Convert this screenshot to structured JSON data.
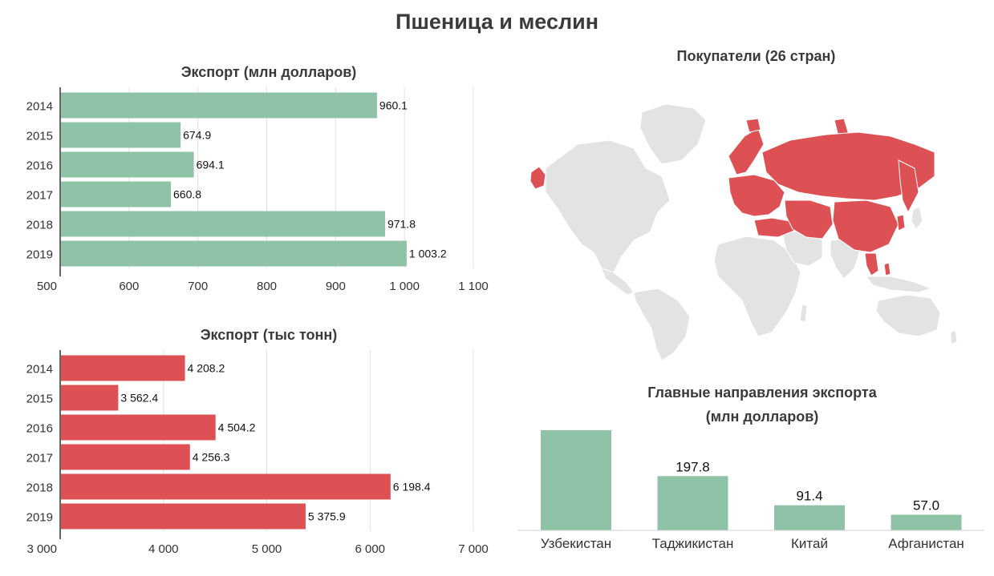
{
  "page_title": "Пшеница и меслин",
  "colors": {
    "green": "#8fc3a7",
    "red": "#dd5054",
    "map_base": "#e3e3e3",
    "map_buyer": "#dd5054"
  },
  "chart_data": [
    {
      "id": "export_value",
      "type": "bar",
      "orientation": "horizontal",
      "title": "Экспорт (млн долларов)",
      "categories": [
        "2014",
        "2015",
        "2016",
        "2017",
        "2018",
        "2019"
      ],
      "values": [
        960.1,
        674.9,
        694.1,
        660.8,
        971.8,
        1003.2
      ],
      "value_labels": [
        "960.1",
        "674.9",
        "694.1",
        "660.8",
        "971.8",
        "1 003.2"
      ],
      "xlim": [
        500,
        1100
      ],
      "ticks": [
        500,
        600,
        700,
        800,
        900,
        1000,
        1100
      ],
      "tick_labels": [
        "500",
        "600",
        "700",
        "800",
        "900",
        "1 000",
        "1 100"
      ],
      "color": "#8fc3a7",
      "grid": true
    },
    {
      "id": "export_volume",
      "type": "bar",
      "orientation": "horizontal",
      "title": "Экспорт (тыс тонн)",
      "categories": [
        "2014",
        "2015",
        "2016",
        "2017",
        "2018",
        "2019"
      ],
      "values": [
        4208.2,
        3562.4,
        4504.2,
        4256.3,
        6198.4,
        5375.9
      ],
      "value_labels": [
        "4 208.2",
        "3 562.4",
        "4 504.2",
        "4 256.3",
        "6 198.4",
        "5 375.9"
      ],
      "xlim": [
        3000,
        7000
      ],
      "ticks": [
        3000,
        4000,
        5000,
        6000,
        7000
      ],
      "tick_labels": [
        "3 000",
        "4 000",
        "5 000",
        "6 000",
        "7 000"
      ],
      "color": "#dd5054",
      "grid": true
    },
    {
      "id": "destinations",
      "type": "bar",
      "orientation": "vertical",
      "title": "Главные направления экспорта",
      "subtitle": "(млн долларов)",
      "categories": [
        "Узбекистан",
        "Таджикистан",
        "Китай",
        "Афганистан"
      ],
      "values": [
        365,
        197.8,
        91.4,
        57.0
      ],
      "value_labels": [
        "",
        "197.8",
        "91.4",
        "57.0"
      ],
      "ylim": [
        0,
        365
      ],
      "color": "#8fc3a7"
    }
  ],
  "map": {
    "title": "Покупатели (26 стран)"
  }
}
